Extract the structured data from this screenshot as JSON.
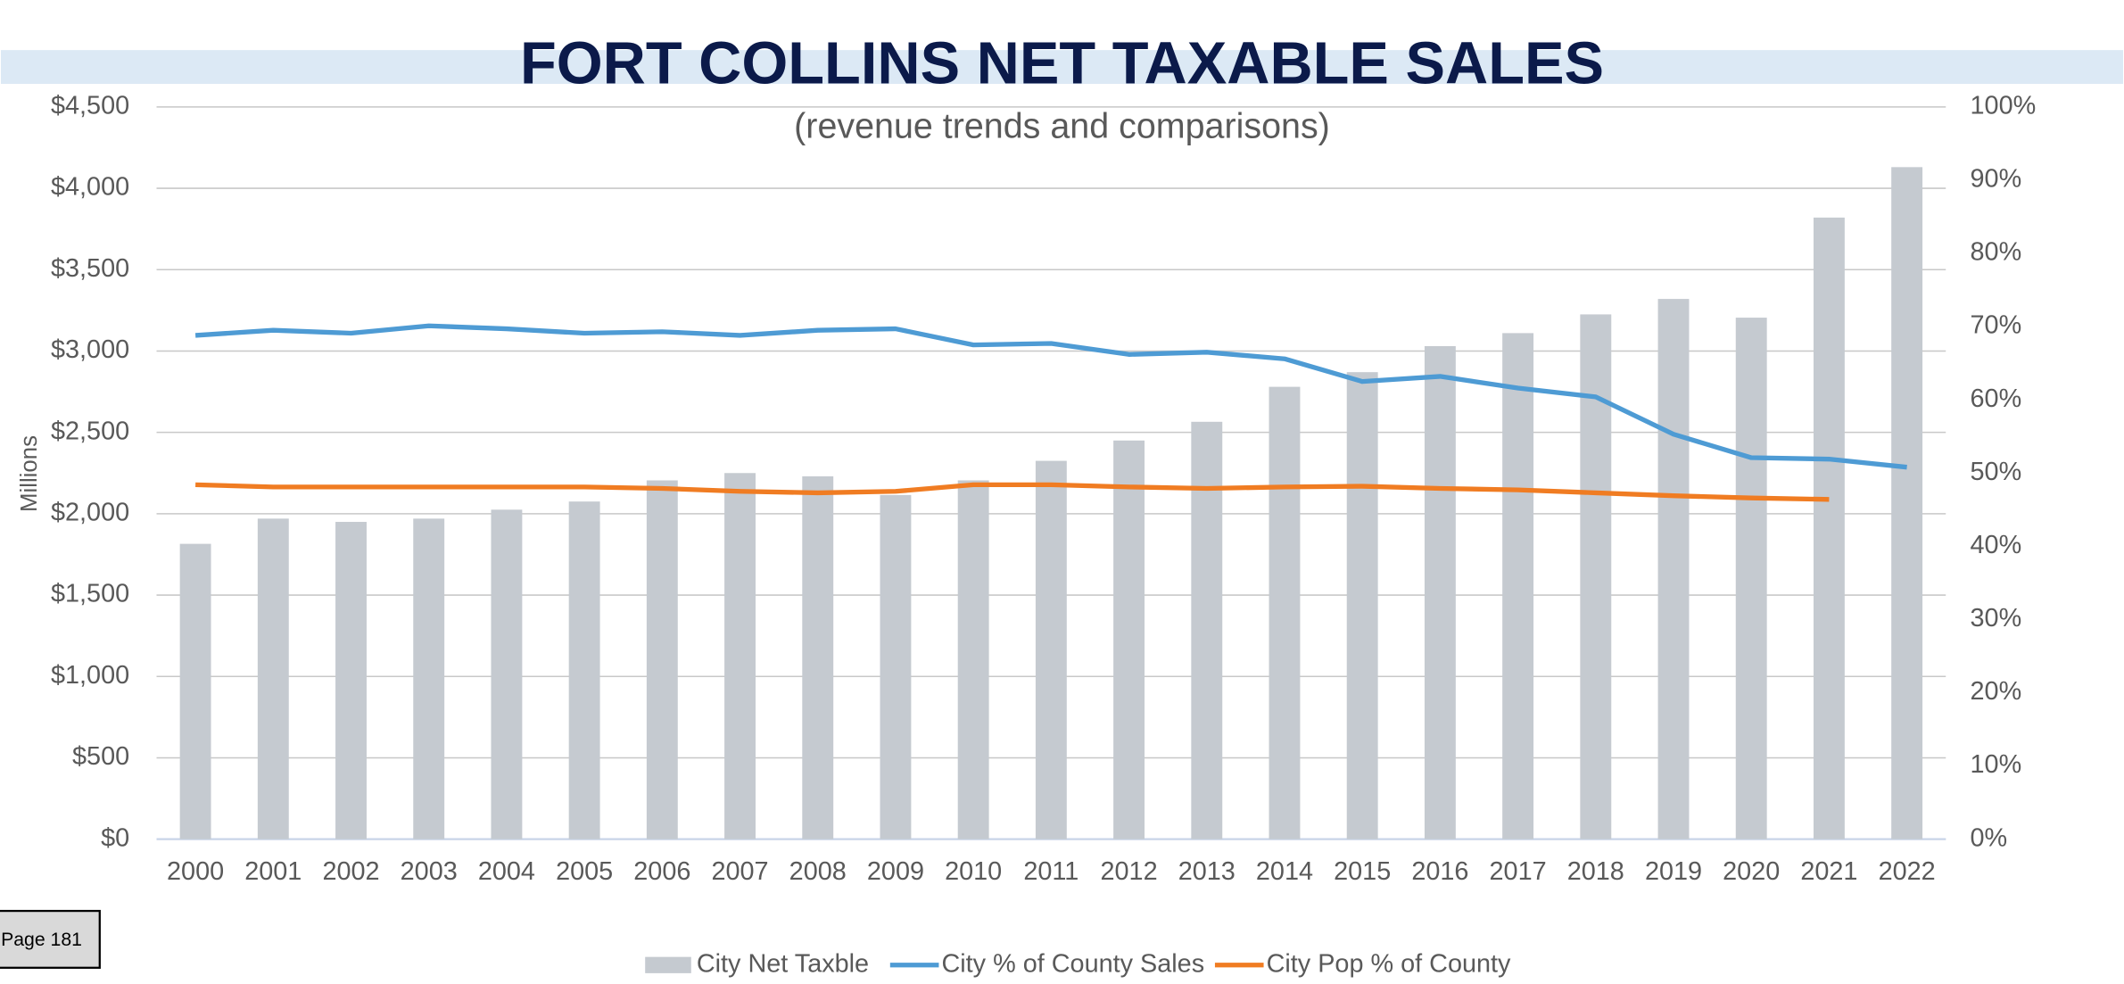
{
  "chart_data": {
    "type": "bar",
    "title": "FORT COLLINS NET TAXABLE SALES",
    "subtitle": "(revenue trends and comparisons)",
    "y_axis_label": "Millions",
    "page_label": "Page 181",
    "categories": [
      "2000",
      "2001",
      "2002",
      "2003",
      "2004",
      "2005",
      "2006",
      "2007",
      "2008",
      "2009",
      "2010",
      "2011",
      "2012",
      "2013",
      "2014",
      "2015",
      "2016",
      "2017",
      "2018",
      "2019",
      "2020",
      "2021",
      "2022"
    ],
    "series": [
      {
        "name": "City Net Taxble",
        "type": "bar",
        "color": "#c5cad0",
        "values": [
          1815,
          1970,
          1950,
          1970,
          2025,
          2075,
          2205,
          2250,
          2230,
          2115,
          2205,
          2325,
          2450,
          2565,
          2780,
          2870,
          3030,
          3110,
          3225,
          3320,
          3205,
          3820,
          4130
        ]
      },
      {
        "name": "City % of County Sales",
        "type": "line",
        "axis": "y2",
        "color": "#4e9bd4",
        "values": [
          68.8,
          69.5,
          69.1,
          70.1,
          69.7,
          69.1,
          69.3,
          68.8,
          69.5,
          69.7,
          67.5,
          67.7,
          66.2,
          66.5,
          65.6,
          62.5,
          63.2,
          61.6,
          60.4,
          55.3,
          52.1,
          51.9,
          50.8
        ]
      },
      {
        "name": "City Pop % of County",
        "type": "line",
        "axis": "y2",
        "color": "#f07c22",
        "values": [
          48.4,
          48.1,
          48.1,
          48.1,
          48.1,
          48.1,
          47.9,
          47.5,
          47.3,
          47.5,
          48.4,
          48.4,
          48.1,
          47.9,
          48.1,
          48.2,
          47.9,
          47.7,
          47.3,
          46.9,
          46.6,
          46.4,
          null
        ]
      }
    ],
    "ylim": [
      0,
      4500
    ],
    "yticks": [
      {
        "value": 0,
        "label": "$0"
      },
      {
        "value": 500,
        "label": "$500"
      },
      {
        "value": 1000,
        "label": "$1,000"
      },
      {
        "value": 1500,
        "label": "$1,500"
      },
      {
        "value": 2000,
        "label": "$2,000"
      },
      {
        "value": 2500,
        "label": "$2,500"
      },
      {
        "value": 3000,
        "label": "$3,000"
      },
      {
        "value": 3500,
        "label": "$3,500"
      },
      {
        "value": 4000,
        "label": "$4,000"
      },
      {
        "value": 4500,
        "label": "$4,500"
      }
    ],
    "y2lim": [
      0,
      100
    ],
    "y2ticks": [
      {
        "value": 0,
        "label": "0%"
      },
      {
        "value": 10,
        "label": "10%"
      },
      {
        "value": 20,
        "label": "20%"
      },
      {
        "value": 30,
        "label": "30%"
      },
      {
        "value": 40,
        "label": "40%"
      },
      {
        "value": 50,
        "label": "50%"
      },
      {
        "value": 60,
        "label": "60%"
      },
      {
        "value": 70,
        "label": "70%"
      },
      {
        "value": 80,
        "label": "80%"
      },
      {
        "value": 90,
        "label": "90%"
      },
      {
        "value": 100,
        "label": "100%"
      }
    ],
    "grid": true,
    "legend": "bottom"
  }
}
